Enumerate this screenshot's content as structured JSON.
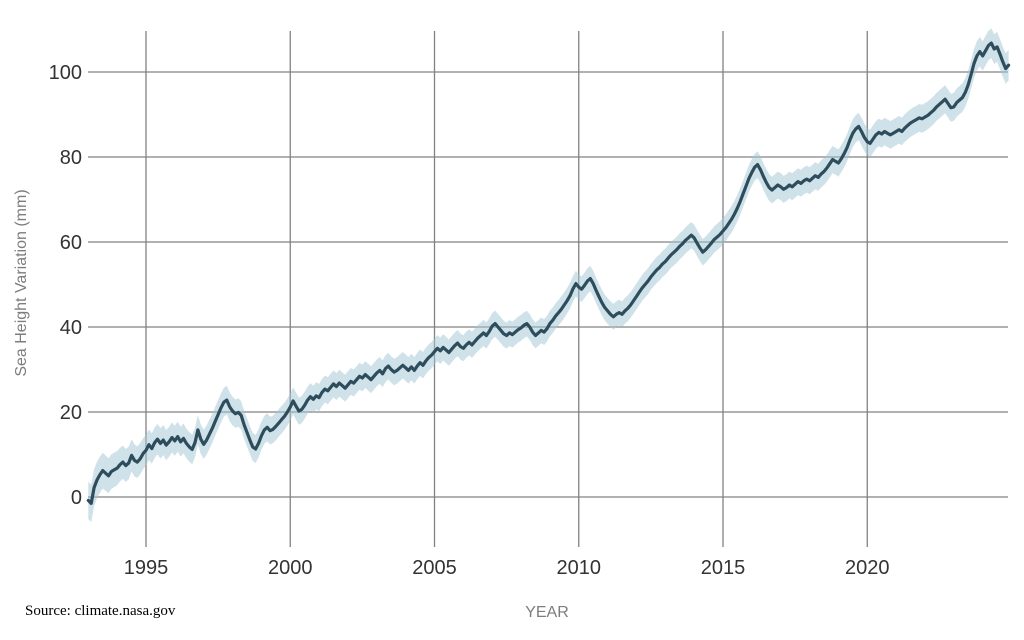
{
  "page": {
    "background": "#ffffff"
  },
  "source_note": "Source: climate.nasa.gov",
  "chart_data": {
    "type": "line",
    "title": "",
    "xlabel": "YEAR",
    "ylabel": "Sea Height Variation (mm)",
    "x_ticks": [
      1995,
      2000,
      2005,
      2010,
      2015,
      2020
    ],
    "y_ticks": [
      0,
      20,
      40,
      60,
      80,
      100
    ],
    "xlim": [
      1993,
      2025
    ],
    "ylim": [
      -12,
      110
    ],
    "grid": true,
    "legend": false,
    "colors": {
      "line": "#2e4d5c",
      "band": "#9fc4d4",
      "grid": "#828282",
      "tick_label": "#333333",
      "axis_title": "#7d7d7d"
    },
    "series": [
      {
        "name": "Sea height variation (mm)",
        "style": "line_with_uncertainty_band",
        "start_year": 1993.0,
        "step_years": 0.1,
        "values": [
          -0.8,
          -1.5,
          2.2,
          4.0,
          5.2,
          6.2,
          5.6,
          5.0,
          6.0,
          6.4,
          6.8,
          7.6,
          8.2,
          7.4,
          8.0,
          9.8,
          8.6,
          8.2,
          9.0,
          10.2,
          11.0,
          12.3,
          11.4,
          12.8,
          13.6,
          12.6,
          13.4,
          12.2,
          13.0,
          14.0,
          13.2,
          14.2,
          13.0,
          13.8,
          12.6,
          11.8,
          11.2,
          12.8,
          15.8,
          13.6,
          12.4,
          13.4,
          14.8,
          16.2,
          17.8,
          19.4,
          21.0,
          22.3,
          22.8,
          21.2,
          20.2,
          19.6,
          19.9,
          19.2,
          17.0,
          15.2,
          13.4,
          11.8,
          11.3,
          12.6,
          14.4,
          15.8,
          16.4,
          15.6,
          15.9,
          16.6,
          17.4,
          18.2,
          19.0,
          20.0,
          21.2,
          22.6,
          21.4,
          20.2,
          20.6,
          21.6,
          22.8,
          23.6,
          23.0,
          23.8,
          23.4,
          24.6,
          25.4,
          25.0,
          25.8,
          26.6,
          26.0,
          26.8,
          26.2,
          25.6,
          26.4,
          27.2,
          26.8,
          27.6,
          28.4,
          28.0,
          28.8,
          28.2,
          27.6,
          28.4,
          29.2,
          29.8,
          29.0,
          30.2,
          30.8,
          30.0,
          29.4,
          29.8,
          30.4,
          31.0,
          30.4,
          29.8,
          30.6,
          29.8,
          30.8,
          31.6,
          31.0,
          32.0,
          32.8,
          33.4,
          34.2,
          35.0,
          34.4,
          35.2,
          34.6,
          34.0,
          34.8,
          35.6,
          36.2,
          35.4,
          35.0,
          35.8,
          36.4,
          35.8,
          36.6,
          37.4,
          38.0,
          38.6,
          38.0,
          39.0,
          40.2,
          40.8,
          40.0,
          39.2,
          38.4,
          38.0,
          38.6,
          38.2,
          38.8,
          39.4,
          39.8,
          40.4,
          40.8,
          40.0,
          38.8,
          38.0,
          38.6,
          39.2,
          38.8,
          39.6,
          40.8,
          41.6,
          42.6,
          43.4,
          44.2,
          45.2,
          46.2,
          47.4,
          49.0,
          50.2,
          49.4,
          48.9,
          49.8,
          50.8,
          51.4,
          50.2,
          48.6,
          47.2,
          45.8,
          44.6,
          43.8,
          43.0,
          42.4,
          43.0,
          43.4,
          43.0,
          43.8,
          44.4,
          45.2,
          46.2,
          47.2,
          48.2,
          49.2,
          50.0,
          50.8,
          51.8,
          52.6,
          53.4,
          54.0,
          54.8,
          55.4,
          56.2,
          57.0,
          57.6,
          58.2,
          59.0,
          59.6,
          60.4,
          61.0,
          61.6,
          61.0,
          59.8,
          58.6,
          57.6,
          58.2,
          59.0,
          59.8,
          60.6,
          61.2,
          61.8,
          62.6,
          63.4,
          64.4,
          65.4,
          66.6,
          68.0,
          69.6,
          71.4,
          73.2,
          75.0,
          76.4,
          77.6,
          78.2,
          77.0,
          75.4,
          74.0,
          72.8,
          72.2,
          72.8,
          73.4,
          73.0,
          72.4,
          72.8,
          73.4,
          73.0,
          73.6,
          74.2,
          73.8,
          74.4,
          74.8,
          74.4,
          75.0,
          75.6,
          75.2,
          76.0,
          76.6,
          77.4,
          78.4,
          79.4,
          79.0,
          78.6,
          79.6,
          80.8,
          82.2,
          84.0,
          85.6,
          86.6,
          87.2,
          86.0,
          84.6,
          83.6,
          83.2,
          84.2,
          85.2,
          85.8,
          85.4,
          86.0,
          85.6,
          85.2,
          85.6,
          86.0,
          86.4,
          86.0,
          86.8,
          87.4,
          88.0,
          88.4,
          88.8,
          89.2,
          89.0,
          89.4,
          89.8,
          90.4,
          91.0,
          91.8,
          92.4,
          93.0,
          93.6,
          92.6,
          91.6,
          91.8,
          92.8,
          93.4,
          94.0,
          95.2,
          97.0,
          99.4,
          102.0,
          103.8,
          104.8,
          103.8,
          105.0,
          106.2,
          106.8,
          105.4,
          105.9,
          104.2,
          102.4,
          100.8,
          101.6
        ],
        "band_halfwidth_anchors": [
          [
            1993.0,
            4.4
          ],
          [
            1995.0,
            3.6
          ],
          [
            2000.0,
            3.2
          ],
          [
            2010.0,
            3.0
          ],
          [
            2019.0,
            3.2
          ],
          [
            2023.0,
            3.3
          ],
          [
            2025.0,
            3.6
          ]
        ]
      }
    ]
  }
}
